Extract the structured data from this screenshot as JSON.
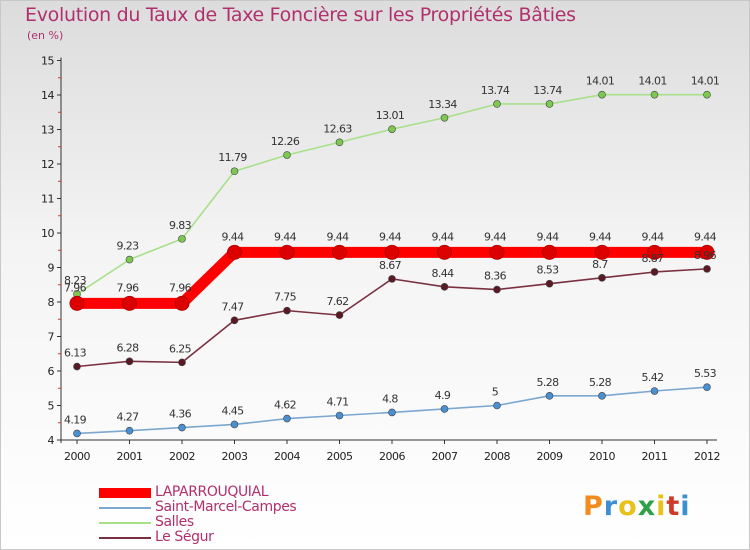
{
  "title": "Evolution du Taux de Taxe Foncière sur les Propriétés Bâties",
  "unit_label": "(en %)",
  "logo_text": "Proxiti",
  "colors": {
    "title": "#b0306e",
    "axis": "#333333",
    "logo": [
      "#f28c1e",
      "#3c8fd0",
      "#e8c21a",
      "#2fa048",
      "#e8c21a",
      "#d03a2a",
      "#3c8fd0"
    ]
  },
  "chart_data": {
    "type": "line",
    "title": "Evolution du Taux de Taxe Foncière sur les Propriétés Bâties",
    "ylabel": "(en %)",
    "xlabel": "",
    "x": [
      "2000",
      "2001",
      "2002",
      "2003",
      "2004",
      "2005",
      "2006",
      "2007",
      "2008",
      "2009",
      "2010",
      "2011",
      "2012"
    ],
    "ylim": [
      4,
      15
    ],
    "yticks": [
      "4",
      "5",
      "6",
      "7",
      "8",
      "9",
      "10",
      "11",
      "12",
      "13",
      "14",
      "15"
    ],
    "grid": false,
    "legend_position": "bottom-left",
    "series": [
      {
        "name": "LAPARROUQUIAL",
        "color": "#ff0000",
        "marker": "#dd0000",
        "values": [
          7.96,
          7.96,
          7.96,
          9.44,
          9.44,
          9.44,
          9.44,
          9.44,
          9.44,
          9.44,
          9.44,
          9.44,
          9.44
        ],
        "labels": [
          "7.96",
          "7.96",
          "7.96",
          "9.44",
          "9.44",
          "9.44",
          "9.44",
          "9.44",
          "9.44",
          "9.44",
          "9.44",
          "9.44",
          "9.44"
        ]
      },
      {
        "name": "Saint-Marcel-Campes",
        "color": "#7ba7d0",
        "marker": "#4a8fd0",
        "values": [
          4.19,
          4.27,
          4.36,
          4.45,
          4.62,
          4.71,
          4.8,
          4.9,
          5,
          5.28,
          5.28,
          5.42,
          5.53
        ],
        "labels": [
          "4.19",
          "4.27",
          "4.36",
          "4.45",
          "4.62",
          "4.71",
          "4.8",
          "4.9",
          "5",
          "5.28",
          "5.28",
          "5.42",
          "5.53"
        ]
      },
      {
        "name": "Salles",
        "color": "#a8e08a",
        "marker": "#7cc850",
        "values": [
          8.23,
          9.23,
          9.83,
          11.79,
          12.26,
          12.63,
          13.01,
          13.34,
          13.74,
          13.74,
          14.01,
          14.01,
          14.01
        ],
        "labels": [
          "8.23",
          "9.23",
          "9.83",
          "11.79",
          "12.26",
          "12.63",
          "13.01",
          "13.34",
          "13.74",
          "13.74",
          "14.01",
          "14.01",
          "14.01"
        ]
      },
      {
        "name": "Le Ségur",
        "color": "#7a3040",
        "marker": "#5a1a24",
        "values": [
          6.13,
          6.28,
          6.25,
          7.47,
          7.75,
          7.62,
          8.67,
          8.44,
          8.36,
          8.53,
          8.7,
          8.87,
          8.96
        ],
        "labels": [
          "6.13",
          "6.28",
          "6.25",
          "7.47",
          "7.75",
          "7.62",
          "8.67",
          "8.44",
          "8.36",
          "8.53",
          "8.7",
          "8.87",
          "8.96"
        ]
      }
    ]
  }
}
